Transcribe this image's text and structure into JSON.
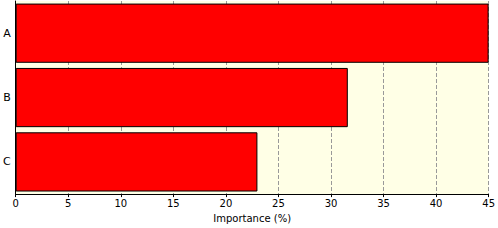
{
  "chart_data": {
    "type": "bar",
    "orientation": "horizontal",
    "categories": [
      "A",
      "B",
      "C"
    ],
    "values": [
      45,
      31.6,
      23.0
    ],
    "color": "#ff0000",
    "xlabel": "Importance (%)",
    "xlim": [
      0,
      45
    ],
    "xticks": [
      0,
      5,
      10,
      15,
      20,
      25,
      30,
      35,
      40,
      45
    ],
    "grid": true
  }
}
